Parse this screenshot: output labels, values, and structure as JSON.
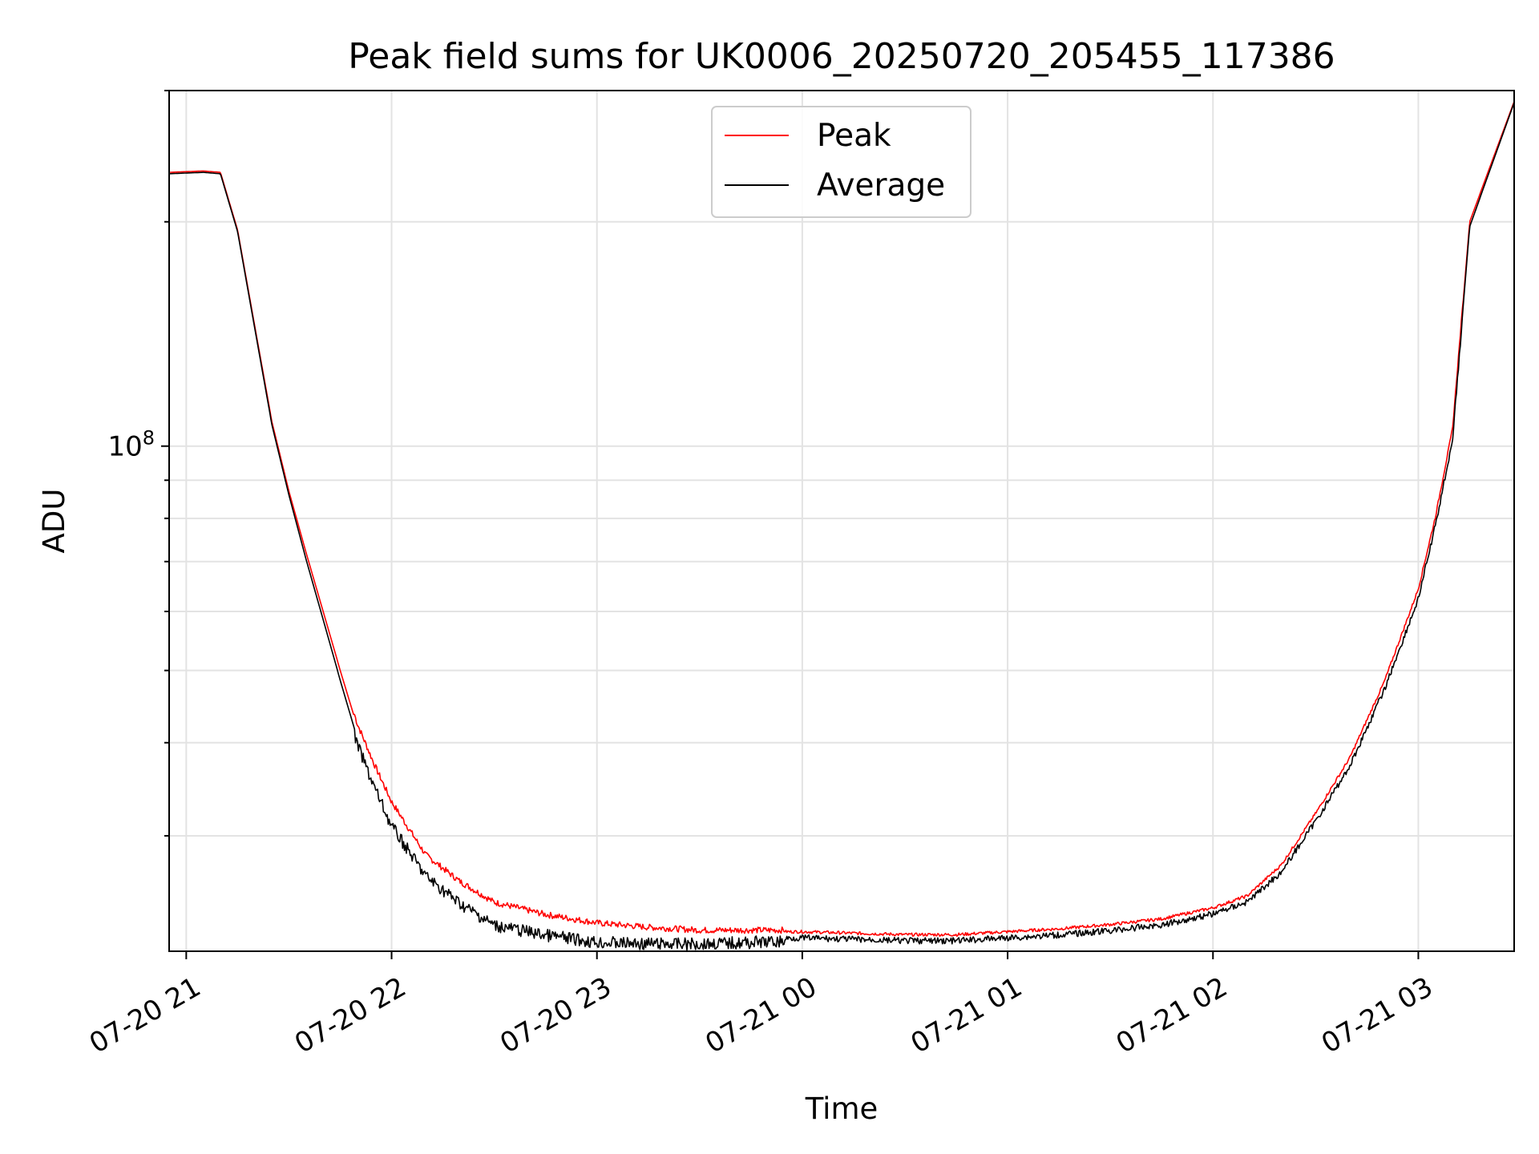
{
  "chart_data": {
    "type": "line",
    "title": "Peak field sums for UK0006_20250720_205455_117386",
    "xlabel": "Time",
    "ylabel": "ADU",
    "y_scale": "log",
    "y_tick_labels": [
      {
        "base": "10",
        "exp": "8"
      }
    ],
    "x_ticks": [
      "07-20 21",
      "07-20 22",
      "07-20 23",
      "07-21 00",
      "07-21 01",
      "07-21 02",
      "07-21 03"
    ],
    "x_tick_times": [
      "2025-07-20T21:00",
      "2025-07-20T22:00",
      "2025-07-20T23:00",
      "2025-07-21T00:00",
      "2025-07-21T01:00",
      "2025-07-21T02:00",
      "2025-07-21T03:00"
    ],
    "xlim": [
      "2025-07-20T20:55",
      "2025-07-21T03:28"
    ],
    "ylim": [
      21000000,
      300000000
    ],
    "grid": true,
    "legend": {
      "placement": "upper center",
      "entries": [
        {
          "label": "Peak",
          "color": "#ff0000"
        },
        {
          "label": "Average",
          "color": "#000000"
        }
      ]
    },
    "series": [
      {
        "name": "Peak",
        "color": "#ff0000",
        "x": [
          "2025-07-20T20:55",
          "2025-07-20T21:05",
          "2025-07-20T21:10",
          "2025-07-20T21:15",
          "2025-07-20T21:20",
          "2025-07-20T21:25",
          "2025-07-20T21:30",
          "2025-07-20T21:35",
          "2025-07-20T21:40",
          "2025-07-20T21:45",
          "2025-07-20T21:50",
          "2025-07-20T21:55",
          "2025-07-20T22:00",
          "2025-07-20T22:10",
          "2025-07-20T22:20",
          "2025-07-20T22:30",
          "2025-07-20T22:45",
          "2025-07-20T23:00",
          "2025-07-20T23:15",
          "2025-07-20T23:30",
          "2025-07-20T23:45",
          "2025-07-21T00:00",
          "2025-07-21T00:15",
          "2025-07-21T00:30",
          "2025-07-21T00:45",
          "2025-07-21T01:00",
          "2025-07-21T01:15",
          "2025-07-21T01:30",
          "2025-07-21T01:45",
          "2025-07-21T02:00",
          "2025-07-21T02:10",
          "2025-07-21T02:20",
          "2025-07-21T02:30",
          "2025-07-21T02:40",
          "2025-07-21T02:50",
          "2025-07-21T03:00",
          "2025-07-21T03:05",
          "2025-07-21T03:10",
          "2025-07-21T03:15",
          "2025-07-21T03:28"
        ],
        "values": [
          233000000,
          234000000,
          233000000,
          195000000,
          145000000,
          108000000,
          87000000,
          72000000,
          60000000,
          50000000,
          42000000,
          37000000,
          33000000,
          28000000,
          25800000,
          24200000,
          23300000,
          22700000,
          22400000,
          22200000,
          22200000,
          22200000,
          22100000,
          22000000,
          22000000,
          22200000,
          22400000,
          22700000,
          23100000,
          23900000,
          24800000,
          27300000,
          32000000,
          38000000,
          48000000,
          64000000,
          80000000,
          105000000,
          200000000,
          290000000
        ]
      },
      {
        "name": "Average",
        "color": "#000000",
        "x": [
          "2025-07-20T20:55",
          "2025-07-20T21:05",
          "2025-07-20T21:10",
          "2025-07-20T21:15",
          "2025-07-20T21:20",
          "2025-07-20T21:25",
          "2025-07-20T21:30",
          "2025-07-20T21:35",
          "2025-07-20T21:40",
          "2025-07-20T21:45",
          "2025-07-20T21:50",
          "2025-07-20T21:55",
          "2025-07-20T22:00",
          "2025-07-20T22:10",
          "2025-07-20T22:20",
          "2025-07-20T22:30",
          "2025-07-20T22:45",
          "2025-07-20T23:00",
          "2025-07-20T23:15",
          "2025-07-20T23:30",
          "2025-07-20T23:45",
          "2025-07-21T00:00",
          "2025-07-21T00:15",
          "2025-07-21T00:30",
          "2025-07-21T00:45",
          "2025-07-21T01:00",
          "2025-07-21T01:15",
          "2025-07-21T01:30",
          "2025-07-21T01:45",
          "2025-07-21T02:00",
          "2025-07-21T02:10",
          "2025-07-21T02:20",
          "2025-07-21T02:30",
          "2025-07-21T02:40",
          "2025-07-21T02:50",
          "2025-07-21T03:00",
          "2025-07-21T03:05",
          "2025-07-21T03:10",
          "2025-07-21T03:15",
          "2025-07-21T03:28"
        ],
        "values": [
          232000000,
          233000000,
          232000000,
          194000000,
          144000000,
          107000000,
          86000000,
          70500000,
          58500000,
          48500000,
          40500000,
          35500000,
          31500000,
          27000000,
          24800000,
          23200000,
          22500000,
          22000000,
          21900000,
          21900000,
          22000000,
          22100000,
          22000000,
          21900000,
          21900000,
          22100000,
          22300000,
          22600000,
          23000000,
          23800000,
          24700000,
          27100000,
          31700000,
          37600000,
          47500000,
          63000000,
          79000000,
          103000000,
          197000000,
          289000000
        ]
      }
    ]
  }
}
